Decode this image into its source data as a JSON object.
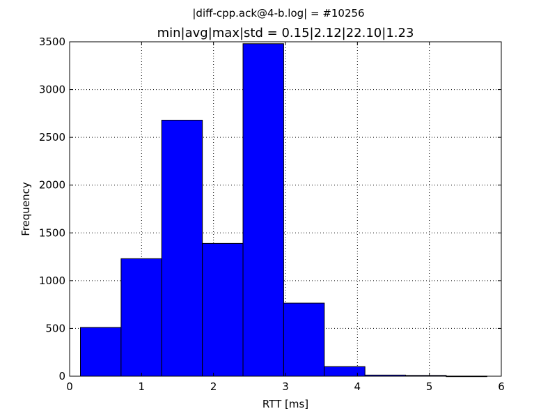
{
  "chart_data": {
    "type": "bar",
    "suptitle": "|diff-cpp.ack@4-b.log| = #10256",
    "title": "min|avg|max|std = 0.15|2.12|22.10|1.23",
    "xlabel": "RTT [ms]",
    "ylabel": "Frequency",
    "xlim": [
      0,
      6
    ],
    "ylim": [
      0,
      3500
    ],
    "xticks": [
      "0",
      "1",
      "2",
      "3",
      "4",
      "5",
      "6"
    ],
    "yticks": [
      "0",
      "500",
      "1000",
      "1500",
      "2000",
      "2500",
      "3000",
      "3500"
    ],
    "grid": true,
    "bar_color": "#0000ff",
    "bins": [
      {
        "x0": 0.15,
        "x1": 0.715,
        "value": 510
      },
      {
        "x0": 0.715,
        "x1": 1.28,
        "value": 1230
      },
      {
        "x0": 1.28,
        "x1": 1.845,
        "value": 2680
      },
      {
        "x0": 1.845,
        "x1": 2.41,
        "value": 1390
      },
      {
        "x0": 2.41,
        "x1": 2.975,
        "value": 3480
      },
      {
        "x0": 2.975,
        "x1": 3.54,
        "value": 765
      },
      {
        "x0": 3.54,
        "x1": 4.105,
        "value": 100
      },
      {
        "x0": 4.105,
        "x1": 4.67,
        "value": 12
      },
      {
        "x0": 4.67,
        "x1": 5.235,
        "value": 8
      },
      {
        "x0": 5.235,
        "x1": 5.8,
        "value": 1
      }
    ]
  }
}
